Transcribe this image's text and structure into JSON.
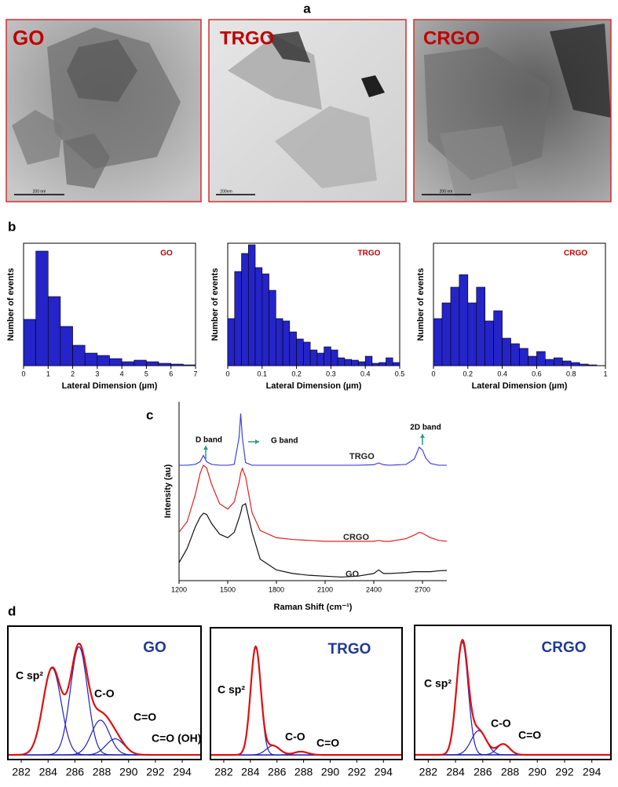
{
  "figure": {
    "panel_labels": [
      "a",
      "b",
      "c",
      "d"
    ],
    "tem_images": [
      {
        "label": "GO",
        "scale_bar": "200 nm"
      },
      {
        "label": "TRGO",
        "scale_bar": "200nm"
      },
      {
        "label": "CRGO",
        "scale_bar": "200 nm"
      }
    ]
  },
  "chart_data": [
    {
      "type": "histogram",
      "label": "GO",
      "label_color": "#c00000",
      "xlabel": "Lateral Dimension (µm)",
      "ylabel": "Number of events",
      "bins": [
        0,
        0.5,
        1,
        1.5,
        2,
        2.5,
        3,
        3.5,
        4,
        4.5,
        5,
        5.5,
        6,
        6.5,
        7
      ],
      "values": [
        59,
        146,
        88,
        50,
        26,
        16,
        13,
        9,
        5,
        7,
        5,
        3,
        2,
        1
      ],
      "color": "#2424c8",
      "xlim": [
        0,
        7
      ],
      "ylim": [
        0,
        156
      ],
      "xticks": [
        0,
        1,
        2,
        3,
        4,
        5,
        6,
        7
      ]
    },
    {
      "type": "histogram",
      "label": "TRGO",
      "label_color": "#c00000",
      "xlabel": "Lateral Dimension (µm)",
      "ylabel": "Number of events",
      "bins": [
        0,
        0.02,
        0.04,
        0.06,
        0.08,
        0.1,
        0.12,
        0.14,
        0.16,
        0.18,
        0.2,
        0.22,
        0.24,
        0.26,
        0.28,
        0.3,
        0.32,
        0.34,
        0.36,
        0.38,
        0.4,
        0.42,
        0.44,
        0.46,
        0.48,
        0.5
      ],
      "values": [
        60,
        120,
        143,
        154,
        125,
        117,
        96,
        60,
        57,
        43,
        34,
        30,
        20,
        16,
        24,
        20,
        10,
        8,
        7,
        5,
        12,
        3,
        4,
        10,
        4
      ],
      "color": "#2424c8",
      "xlim": [
        0,
        0.5
      ],
      "ylim": [
        0,
        156
      ],
      "xticks": [
        0,
        0.1,
        0.2,
        0.3,
        0.4,
        0.5
      ]
    },
    {
      "type": "histogram",
      "label": "CRGO",
      "label_color": "#c00000",
      "xlabel": "Lateral Dimension (µm)",
      "ylabel": "Number of events",
      "bins": [
        0,
        0.05,
        0.1,
        0.15,
        0.2,
        0.25,
        0.3,
        0.35,
        0.4,
        0.45,
        0.5,
        0.55,
        0.6,
        0.65,
        0.7,
        0.75,
        0.8,
        0.85,
        0.9,
        0.95
      ],
      "values": [
        60,
        80,
        100,
        116,
        80,
        100,
        57,
        70,
        35,
        28,
        22,
        12,
        18,
        8,
        10,
        6,
        4,
        2,
        1
      ],
      "color": "#2424c8",
      "xlim": [
        0,
        1
      ],
      "ylim": [
        0,
        156
      ],
      "xticks": [
        0,
        0.2,
        0.4,
        0.6,
        0.8,
        1
      ]
    },
    {
      "type": "line",
      "xlabel": "Raman Shift (cm⁻¹)",
      "ylabel": "Intensity (au)",
      "x": [
        1200,
        1250,
        1300,
        1330,
        1350,
        1370,
        1400,
        1450,
        1500,
        1540,
        1570,
        1580,
        1590,
        1610,
        1650,
        1700,
        1800,
        1900,
        2000,
        2100,
        2200,
        2300,
        2400,
        2430,
        2460,
        2500,
        2600,
        2650,
        2680,
        2700,
        2720,
        2750,
        2800,
        2850
      ],
      "series": [
        {
          "name": "TRGO",
          "color": "#4040e0",
          "values": [
            64.5,
            64.5,
            65,
            66.5,
            70,
            66.5,
            65,
            64.5,
            64.5,
            65,
            80,
            93.4,
            80,
            66,
            64.5,
            64.5,
            64.5,
            64.5,
            64.5,
            64.5,
            64.5,
            64.5,
            64.8,
            65.8,
            64.8,
            64.5,
            65,
            68,
            74.6,
            73,
            68.5,
            65.5,
            64.5,
            64.5
          ]
        },
        {
          "name": "CRGO",
          "color": "#e02020",
          "values": [
            27,
            33,
            48,
            60,
            64.5,
            63,
            54,
            43,
            40,
            44,
            55,
            60,
            62.7,
            58,
            38,
            28,
            24,
            23,
            22.5,
            22,
            22,
            22,
            22,
            22.5,
            22,
            22,
            23.5,
            25.5,
            27,
            26.5,
            25.5,
            24,
            22.5,
            22
          ]
        },
        {
          "name": "GO",
          "color": "#111111",
          "values": [
            10,
            18,
            30,
            35.5,
            37.7,
            37,
            32,
            26,
            24,
            27,
            35,
            38,
            42,
            43,
            27,
            12,
            6,
            4,
            3,
            2.5,
            2,
            2.5,
            4,
            6,
            4,
            4,
            4.5,
            5,
            5,
            5,
            5,
            5,
            5.5,
            5.7
          ]
        }
      ],
      "annotations": [
        "D band",
        "G band",
        "2D band"
      ],
      "annotation_color": "#20a080",
      "xlim": [
        1200,
        2850
      ],
      "ylim": [
        0,
        100
      ],
      "xticks": [
        1200,
        1500,
        1800,
        2100,
        2400,
        2700
      ]
    },
    {
      "type": "xps",
      "title": "GO",
      "title_color": "#1f3a93",
      "envelope_color": "#e01010",
      "component_color": "#2020c0",
      "xlim": [
        281,
        295.4
      ],
      "ylim": [
        0,
        100
      ],
      "xticks": [
        282,
        284,
        286,
        288,
        290,
        292,
        294
      ],
      "baseline": 3.5,
      "peaks": [
        {
          "name": "C sp²",
          "center": 284.3,
          "height": 65,
          "fwhm": 1.6
        },
        {
          "name": "C-O",
          "center": 286.3,
          "height": 81,
          "fwhm": 1.5
        },
        {
          "name": "C=O",
          "center": 287.9,
          "height": 26,
          "fwhm": 1.6
        },
        {
          "name": "C=O (OH)",
          "center": 289.0,
          "height": 12,
          "fwhm": 1.6
        }
      ]
    },
    {
      "type": "xps",
      "title": "TRGO",
      "title_color": "#1f3a93",
      "envelope_color": "#e01010",
      "component_color": "#2020c0",
      "xlim": [
        281,
        295.4
      ],
      "ylim": [
        0,
        100
      ],
      "xticks": [
        282,
        284,
        286,
        288,
        290,
        292,
        294
      ],
      "baseline": 3.5,
      "peaks": [
        {
          "name": "C sp²",
          "center": 284.4,
          "height": 82,
          "fwhm": 0.9
        },
        {
          "name": "C-O",
          "center": 285.7,
          "height": 7,
          "fwhm": 1.2
        },
        {
          "name": "C=O",
          "center": 287.8,
          "height": 2.5,
          "fwhm": 1.2
        }
      ]
    },
    {
      "type": "xps",
      "title": "CRGO",
      "title_color": "#1f3a93",
      "envelope_color": "#e01010",
      "component_color": "#2020c0",
      "xlim": [
        281,
        295.4
      ],
      "ylim": [
        0,
        100
      ],
      "xticks": [
        282,
        284,
        286,
        288,
        290,
        292,
        294
      ],
      "baseline": 3.5,
      "peaks": [
        {
          "name": "C sp²",
          "center": 284.5,
          "height": 84,
          "fwhm": 1.0
        },
        {
          "name": "C-O",
          "center": 285.7,
          "height": 18,
          "fwhm": 1.3
        },
        {
          "name": "C=O",
          "center": 287.5,
          "height": 8,
          "fwhm": 1.1
        }
      ]
    }
  ]
}
